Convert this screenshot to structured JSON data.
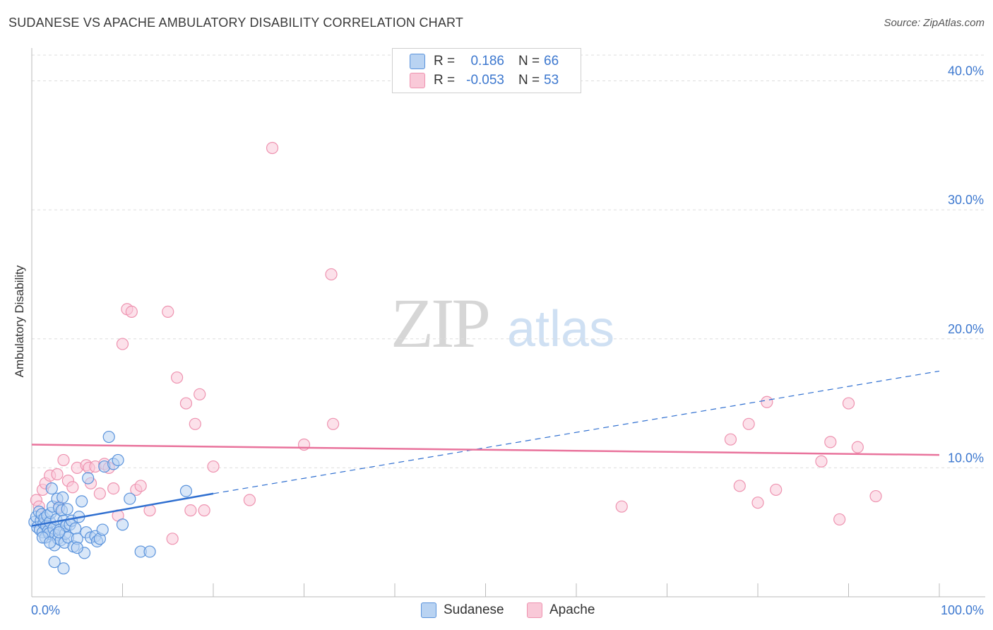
{
  "title": "SUDANESE VS APACHE AMBULATORY DISABILITY CORRELATION CHART",
  "source": "Source: ZipAtlas.com",
  "watermark": {
    "zip": "ZIP",
    "atlas": "atlas"
  },
  "legend": {
    "rows": [
      {
        "r_label": "R =",
        "r_value": "0.186",
        "n_label": "N =",
        "n_value": "66"
      },
      {
        "r_label": "R =",
        "r_value": "-0.053",
        "n_label": "N =",
        "n_value": "53"
      }
    ]
  },
  "colors": {
    "sudanese_fill": "#b9d3f2",
    "sudanese_stroke": "#5a93dc",
    "sudanese_line": "#2f6fd0",
    "apache_fill": "#f9c9d8",
    "apache_stroke": "#ee93b0",
    "apache_line": "#e9739c",
    "tick_label": "#3d78cf",
    "grid": "#dddddd"
  },
  "chart_data": {
    "type": "scatter",
    "title": "SUDANESE VS APACHE AMBULATORY DISABILITY CORRELATION CHART",
    "xlabel": "",
    "ylabel": "Ambulatory Disability",
    "xlim": [
      0,
      100
    ],
    "ylim": [
      0,
      42
    ],
    "x_tick_labels": [
      "0.0%",
      "100.0%"
    ],
    "y_ticks": [
      10,
      20,
      30,
      40
    ],
    "y_tick_labels": [
      "10.0%",
      "20.0%",
      "30.0%",
      "40.0%"
    ],
    "grid": true,
    "legend_position": "bottom-center",
    "series": [
      {
        "name": "Sudanese",
        "r": 0.186,
        "n": 66,
        "trend": {
          "x0": 0,
          "y0": 5.5,
          "x1": 20,
          "y1": 8.0,
          "dashed_to_x": 100,
          "dashed_to_y": 17.5
        },
        "points": [
          [
            0.3,
            5.8
          ],
          [
            0.5,
            6.2
          ],
          [
            0.6,
            5.4
          ],
          [
            0.8,
            6.6
          ],
          [
            0.9,
            5.2
          ],
          [
            1.0,
            5.9
          ],
          [
            1.1,
            6.4
          ],
          [
            1.2,
            5.0
          ],
          [
            1.3,
            5.7
          ],
          [
            1.4,
            6.1
          ],
          [
            1.5,
            4.6
          ],
          [
            1.6,
            5.5
          ],
          [
            1.7,
            6.3
          ],
          [
            1.8,
            5.1
          ],
          [
            1.9,
            4.9
          ],
          [
            2.0,
            5.8
          ],
          [
            2.1,
            6.5
          ],
          [
            2.2,
            8.4
          ],
          [
            2.3,
            7.0
          ],
          [
            2.4,
            5.3
          ],
          [
            2.5,
            4.0
          ],
          [
            2.6,
            4.8
          ],
          [
            2.7,
            6.0
          ],
          [
            2.8,
            7.6
          ],
          [
            2.9,
            4.5
          ],
          [
            3.0,
            6.9
          ],
          [
            3.1,
            5.2
          ],
          [
            3.2,
            4.4
          ],
          [
            3.3,
            6.7
          ],
          [
            3.4,
            7.7
          ],
          [
            3.5,
            5.9
          ],
          [
            3.6,
            4.2
          ],
          [
            3.7,
            4.9
          ],
          [
            3.8,
            5.5
          ],
          [
            3.9,
            6.8
          ],
          [
            4.0,
            4.6
          ],
          [
            4.2,
            5.6
          ],
          [
            4.4,
            5.9
          ],
          [
            4.6,
            3.9
          ],
          [
            4.8,
            5.3
          ],
          [
            5.0,
            4.5
          ],
          [
            5.2,
            6.2
          ],
          [
            5.5,
            7.4
          ],
          [
            5.8,
            3.4
          ],
          [
            6.0,
            5.0
          ],
          [
            6.5,
            4.6
          ],
          [
            7.0,
            4.7
          ],
          [
            7.2,
            4.3
          ],
          [
            7.5,
            4.5
          ],
          [
            7.8,
            5.2
          ],
          [
            8.0,
            10.1
          ],
          [
            8.5,
            12.4
          ],
          [
            9.0,
            10.3
          ],
          [
            9.5,
            10.6
          ],
          [
            10.0,
            5.6
          ],
          [
            10.8,
            7.6
          ],
          [
            12.0,
            3.5
          ],
          [
            2.5,
            2.7
          ],
          [
            3.5,
            2.2
          ],
          [
            5.0,
            3.8
          ],
          [
            6.2,
            9.2
          ],
          [
            1.2,
            4.6
          ],
          [
            2.0,
            4.2
          ],
          [
            3.0,
            5.0
          ],
          [
            13.0,
            3.5
          ],
          [
            17.0,
            8.2
          ]
        ]
      },
      {
        "name": "Apache",
        "r": -0.053,
        "n": 53,
        "trend": {
          "x0": 0,
          "y0": 11.8,
          "x1": 100,
          "y1": 11.0
        },
        "points": [
          [
            0.5,
            7.5
          ],
          [
            0.8,
            7.0
          ],
          [
            1.2,
            8.3
          ],
          [
            1.5,
            8.8
          ],
          [
            2.0,
            9.4
          ],
          [
            2.8,
            9.5
          ],
          [
            3.0,
            7.0
          ],
          [
            3.5,
            10.6
          ],
          [
            4.0,
            9.0
          ],
          [
            4.5,
            8.5
          ],
          [
            5.0,
            10.0
          ],
          [
            6.0,
            10.2
          ],
          [
            6.3,
            10.0
          ],
          [
            6.5,
            8.8
          ],
          [
            7.0,
            10.1
          ],
          [
            7.5,
            8.0
          ],
          [
            8.0,
            10.3
          ],
          [
            8.5,
            10.0
          ],
          [
            9.0,
            8.4
          ],
          [
            9.5,
            6.3
          ],
          [
            10.0,
            19.6
          ],
          [
            10.5,
            22.3
          ],
          [
            11.0,
            22.1
          ],
          [
            11.5,
            8.3
          ],
          [
            12.0,
            8.6
          ],
          [
            13.0,
            6.7
          ],
          [
            15.0,
            22.1
          ],
          [
            15.5,
            4.5
          ],
          [
            16.0,
            17.0
          ],
          [
            17.0,
            15.0
          ],
          [
            17.5,
            6.7
          ],
          [
            18.0,
            13.4
          ],
          [
            18.5,
            15.7
          ],
          [
            19.0,
            6.7
          ],
          [
            20.0,
            10.1
          ],
          [
            24.0,
            7.5
          ],
          [
            26.5,
            34.8
          ],
          [
            30.0,
            11.8
          ],
          [
            33.0,
            25.0
          ],
          [
            33.2,
            13.4
          ],
          [
            65.0,
            7.0
          ],
          [
            77.0,
            12.2
          ],
          [
            78.0,
            8.6
          ],
          [
            79.0,
            13.4
          ],
          [
            80.0,
            7.3
          ],
          [
            81.0,
            15.1
          ],
          [
            82.0,
            8.3
          ],
          [
            87.0,
            10.5
          ],
          [
            88.0,
            12.0
          ],
          [
            89.0,
            6.0
          ],
          [
            90.0,
            15.0
          ],
          [
            91.0,
            11.6
          ],
          [
            93.0,
            7.8
          ]
        ]
      }
    ]
  },
  "extra_apache_points_note": ""
}
